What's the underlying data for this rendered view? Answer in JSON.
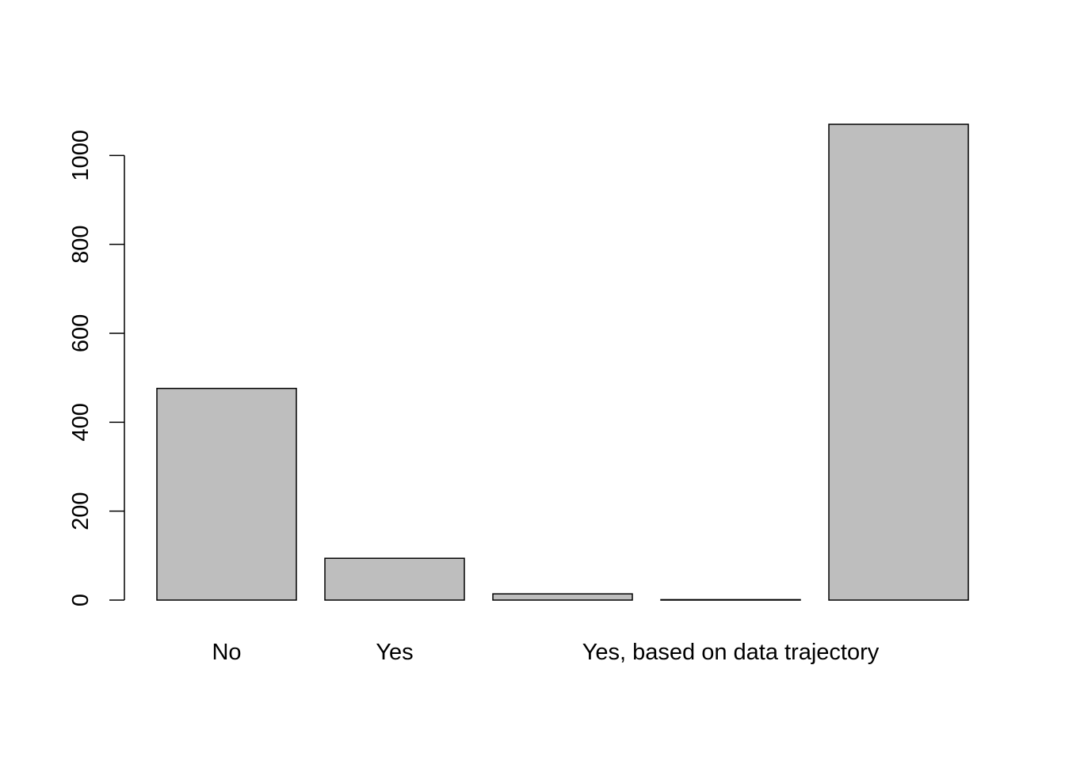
{
  "chart_data": {
    "type": "bar",
    "categories": [
      "No",
      "Yes",
      "",
      "",
      ""
    ],
    "category_labels_shown": [
      "No",
      "Yes",
      "",
      "Yes, based on data trajectory",
      ""
    ],
    "values": [
      476,
      94,
      14,
      1,
      1070
    ],
    "ylim": [
      0,
      1070
    ],
    "yticks": [
      0,
      200,
      400,
      600,
      800,
      1000
    ],
    "title": "",
    "xlabel": "",
    "ylabel": "",
    "bar_color": "#bebebe",
    "border_color": "#000000",
    "grid": false
  }
}
